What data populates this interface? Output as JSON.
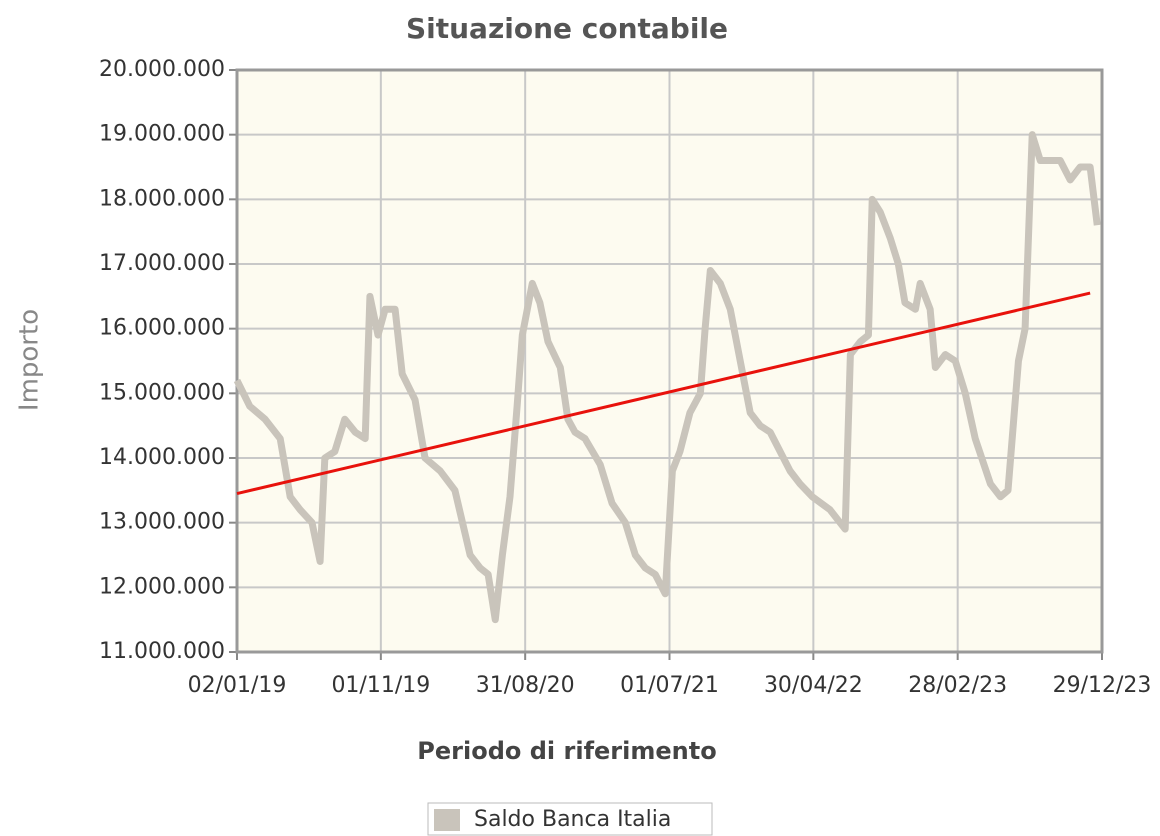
{
  "chart_data": {
    "type": "line",
    "title": "Situazione contabile",
    "x_label": "Periodo di riferimento",
    "y_label": "Importo",
    "x": [
      "2019-01-02",
      "2019-01-29",
      "2019-03-02",
      "2019-04-03",
      "2019-04-24",
      "2019-05-15",
      "2019-06-09",
      "2019-06-26",
      "2019-07-06",
      "2019-07-27",
      "2019-08-17",
      "2019-09-08",
      "2019-09-29",
      "2019-10-09",
      "2019-10-26",
      "2019-11-10",
      "2019-12-01",
      "2019-12-16",
      "2020-01-12",
      "2020-02-02",
      "2020-03-05",
      "2020-04-05",
      "2020-05-07",
      "2020-05-28",
      "2020-06-14",
      "2020-06-29",
      "2020-07-14",
      "2020-07-30",
      "2020-08-14",
      "2020-08-25",
      "2020-09-15",
      "2020-10-01",
      "2020-10-18",
      "2020-11-13",
      "2020-11-29",
      "2020-12-14",
      "2021-01-04",
      "2021-02-05",
      "2021-03-02",
      "2021-03-30",
      "2021-04-20",
      "2021-05-11",
      "2021-06-01",
      "2021-06-22",
      "2021-07-07",
      "2021-07-23",
      "2021-08-13",
      "2021-09-04",
      "2021-09-14",
      "2021-09-25",
      "2021-10-16",
      "2021-11-06",
      "2021-11-27",
      "2021-12-18",
      "2022-01-08",
      "2022-01-29",
      "2022-02-19",
      "2022-03-12",
      "2022-04-02",
      "2022-04-28",
      "2022-06-04",
      "2022-07-06",
      "2022-07-17",
      "2022-08-07",
      "2022-08-24",
      "2022-09-01",
      "2022-09-18",
      "2022-10-09",
      "2022-10-26",
      "2022-11-09",
      "2022-12-01",
      "2022-12-11",
      "2023-01-01",
      "2023-01-12",
      "2023-02-02",
      "2023-02-23",
      "2023-03-16",
      "2023-04-06",
      "2023-05-08",
      "2023-05-29",
      "2023-06-14",
      "2023-07-06",
      "2023-07-20",
      "2023-08-04",
      "2023-08-21",
      "2023-09-11",
      "2023-10-02",
      "2023-10-23",
      "2023-11-13",
      "2023-12-04",
      "2023-12-19"
    ],
    "series": [
      {
        "name": "Saldo Banca Italia",
        "color": "#c9c4bb",
        "values": [
          15200000,
          14800000,
          14600000,
          14300000,
          13400000,
          13200000,
          13000000,
          12400000,
          14000000,
          14100000,
          14600000,
          14400000,
          14300000,
          16500000,
          15900000,
          16300000,
          16300000,
          15300000,
          14900000,
          14000000,
          13800000,
          13500000,
          12500000,
          12300000,
          12200000,
          11500000,
          12500000,
          13400000,
          14800000,
          15900000,
          16700000,
          16400000,
          15800000,
          15400000,
          14600000,
          14400000,
          14300000,
          13900000,
          13300000,
          13000000,
          12500000,
          12300000,
          12200000,
          11900000,
          13800000,
          14100000,
          14700000,
          15000000,
          16000000,
          16900000,
          16700000,
          16300000,
          15500000,
          14700000,
          14500000,
          14400000,
          14100000,
          13800000,
          13600000,
          13400000,
          13200000,
          12900000,
          15600000,
          15800000,
          15900000,
          18000000,
          17800000,
          17400000,
          17000000,
          16400000,
          16300000,
          16700000,
          16300000,
          15400000,
          15600000,
          15500000,
          15000000,
          14300000,
          13600000,
          13400000,
          13500000,
          15500000,
          16000000,
          19000000,
          18600000,
          18600000,
          18600000,
          18300000,
          18500000,
          18500000,
          17600000
        ]
      }
    ],
    "trend": {
      "color": "#e8120c",
      "x": [
        "2019-01-02",
        "2023-12-04"
      ],
      "values": [
        13450000,
        16550000
      ]
    },
    "xlim": [
      "2019-01-02",
      "2023-12-29"
    ],
    "xticks": [
      {
        "value": "2019-01-02",
        "label": "02/01/19"
      },
      {
        "value": "2019-11-01",
        "label": "01/11/19"
      },
      {
        "value": "2020-08-31",
        "label": "31/08/20"
      },
      {
        "value": "2021-07-01",
        "label": "01/07/21"
      },
      {
        "value": "2022-04-30",
        "label": "30/04/22"
      },
      {
        "value": "2023-02-28",
        "label": "28/02/23"
      },
      {
        "value": "2023-12-29",
        "label": "29/12/23"
      }
    ],
    "ylim": [
      11000000,
      20000000
    ],
    "yticks": [
      {
        "value": 11000000,
        "label": "11.000.000"
      },
      {
        "value": 12000000,
        "label": "12.000.000"
      },
      {
        "value": 13000000,
        "label": "13.000.000"
      },
      {
        "value": 14000000,
        "label": "14.000.000"
      },
      {
        "value": 15000000,
        "label": "15.000.000"
      },
      {
        "value": 16000000,
        "label": "16.000.000"
      },
      {
        "value": 17000000,
        "label": "17.000.000"
      },
      {
        "value": 18000000,
        "label": "18.000.000"
      },
      {
        "value": 19000000,
        "label": "19.000.000"
      },
      {
        "value": 20000000,
        "label": "20.000.000"
      }
    ],
    "grid": true,
    "plot_background": "#fdfbf0",
    "legend": "bottom"
  }
}
